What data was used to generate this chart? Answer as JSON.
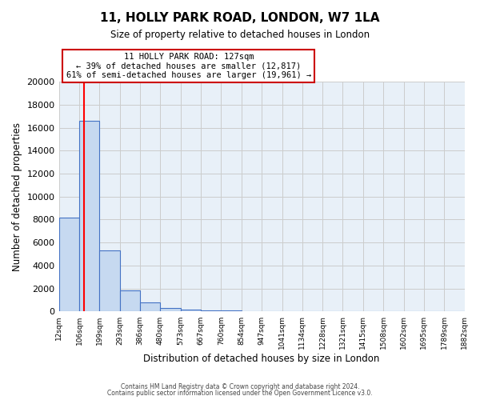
{
  "title": "11, HOLLY PARK ROAD, LONDON, W7 1LA",
  "subtitle": "Size of property relative to detached houses in London",
  "xlabel": "Distribution of detached houses by size in London",
  "ylabel": "Number of detached properties",
  "bin_edges": [
    12,
    106,
    199,
    293,
    386,
    480,
    573,
    667,
    760,
    854,
    947,
    1041,
    1134,
    1228,
    1321,
    1415,
    1508,
    1602,
    1695,
    1789,
    1882
  ],
  "bin_labels": [
    "12sqm",
    "106sqm",
    "199sqm",
    "293sqm",
    "386sqm",
    "480sqm",
    "573sqm",
    "667sqm",
    "760sqm",
    "854sqm",
    "947sqm",
    "1041sqm",
    "1134sqm",
    "1228sqm",
    "1321sqm",
    "1415sqm",
    "1508sqm",
    "1602sqm",
    "1695sqm",
    "1789sqm",
    "1882sqm"
  ],
  "counts": [
    8150,
    16600,
    5300,
    1850,
    780,
    310,
    190,
    130,
    90,
    0,
    0,
    0,
    0,
    0,
    0,
    0,
    0,
    0,
    0,
    0
  ],
  "bar_color": "#c6d9f0",
  "bar_edge_color": "#4472c4",
  "red_line_x": 127,
  "annotation_title": "11 HOLLY PARK ROAD: 127sqm",
  "annotation_line1": "← 39% of detached houses are smaller (12,817)",
  "annotation_line2": "61% of semi-detached houses are larger (19,961) →",
  "annotation_box_color": "#ffffff",
  "annotation_box_edge": "#cc0000",
  "ylim": [
    0,
    20000
  ],
  "yticks": [
    0,
    2000,
    4000,
    6000,
    8000,
    10000,
    12000,
    14000,
    16000,
    18000,
    20000
  ],
  "grid_color": "#cccccc",
  "background_color": "#e8f0f8",
  "fig_background": "#ffffff",
  "footer_line1": "Contains HM Land Registry data © Crown copyright and database right 2024.",
  "footer_line2": "Contains public sector information licensed under the Open Government Licence v3.0."
}
